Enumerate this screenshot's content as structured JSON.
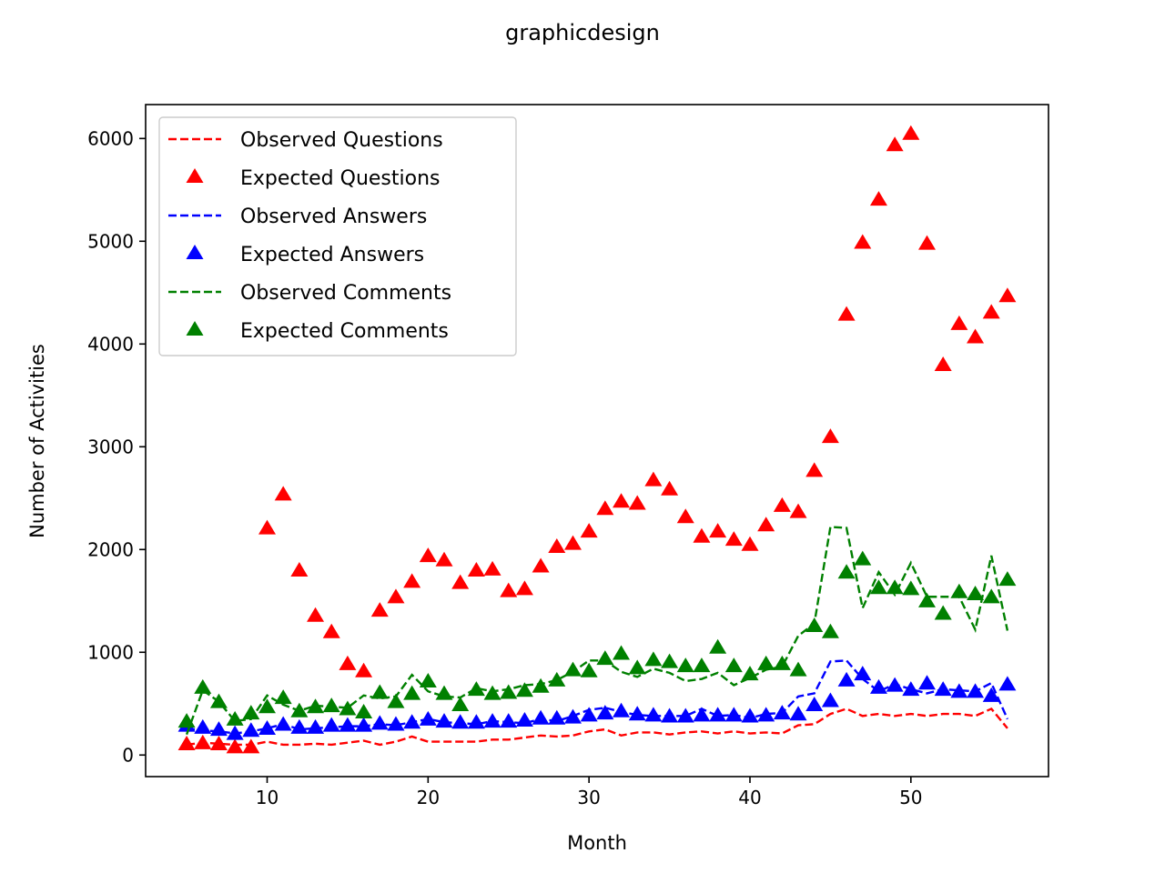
{
  "chart_data": {
    "type": "line",
    "title": "graphicdesign",
    "xlabel": "Month",
    "ylabel": "Number of Activities",
    "xlim": [
      2.45,
      58.55
    ],
    "ylim": [
      -210,
      6330
    ],
    "x_ticks": [
      10,
      20,
      30,
      40,
      50
    ],
    "y_ticks": [
      0,
      1000,
      2000,
      3000,
      4000,
      5000,
      6000
    ],
    "grid": false,
    "legend_position": "top-left",
    "x": [
      5,
      6,
      7,
      8,
      9,
      10,
      11,
      12,
      13,
      14,
      15,
      16,
      17,
      18,
      19,
      20,
      21,
      22,
      23,
      24,
      25,
      26,
      27,
      28,
      29,
      30,
      31,
      32,
      33,
      34,
      35,
      36,
      37,
      38,
      39,
      40,
      41,
      42,
      43,
      44,
      45,
      46,
      47,
      48,
      49,
      50,
      51,
      52,
      53,
      54,
      55,
      56
    ],
    "series": [
      {
        "name": "Observed Questions",
        "style": "dashed-line",
        "color": "#ff0000",
        "values": [
          100,
          120,
          110,
          100,
          100,
          130,
          100,
          100,
          110,
          100,
          120,
          140,
          100,
          130,
          180,
          130,
          130,
          130,
          130,
          150,
          150,
          170,
          190,
          180,
          190,
          230,
          250,
          190,
          220,
          220,
          200,
          220,
          230,
          210,
          230,
          210,
          220,
          210,
          290,
          300,
          400,
          450,
          380,
          400,
          380,
          400,
          380,
          400,
          400,
          380,
          450,
          260
        ]
      },
      {
        "name": "Expected Questions",
        "style": "triangle-marker",
        "color": "#ff0000",
        "values": [
          100,
          110,
          100,
          70,
          70,
          2200,
          2530,
          1790,
          1350,
          1190,
          880,
          810,
          1400,
          1530,
          1680,
          1930,
          1890,
          1670,
          1790,
          1800,
          1590,
          1610,
          1830,
          2020,
          2050,
          2170,
          2390,
          2460,
          2440,
          2670,
          2580,
          2310,
          2120,
          2170,
          2090,
          2040,
          2230,
          2420,
          2360,
          2760,
          3090,
          4280,
          4980,
          5400,
          5930,
          6040,
          4970,
          3790,
          4190,
          4060,
          4300,
          4460
        ]
      },
      {
        "name": "Observed Answers",
        "style": "dashed-line",
        "color": "#0000ff",
        "values": [
          260,
          240,
          230,
          210,
          230,
          260,
          300,
          250,
          260,
          270,
          280,
          280,
          300,
          290,
          320,
          350,
          320,
          310,
          300,
          330,
          320,
          310,
          350,
          330,
          380,
          440,
          460,
          420,
          390,
          380,
          380,
          380,
          450,
          380,
          390,
          360,
          400,
          410,
          570,
          600,
          910,
          920,
          740,
          620,
          690,
          640,
          600,
          640,
          630,
          620,
          700,
          350
        ]
      },
      {
        "name": "Expected Answers",
        "style": "triangle-marker",
        "color": "#0000ff",
        "values": [
          280,
          260,
          240,
          200,
          230,
          250,
          290,
          260,
          260,
          280,
          280,
          280,
          300,
          290,
          310,
          340,
          320,
          310,
          310,
          320,
          320,
          330,
          350,
          350,
          360,
          380,
          400,
          420,
          390,
          380,
          370,
          370,
          380,
          380,
          380,
          370,
          380,
          400,
          390,
          480,
          520,
          720,
          780,
          650,
          670,
          630,
          690,
          630,
          610,
          610,
          570,
          680
        ]
      },
      {
        "name": "Observed Comments",
        "style": "dashed-line",
        "color": "#008000",
        "values": [
          200,
          630,
          520,
          330,
          350,
          580,
          490,
          430,
          480,
          470,
          460,
          580,
          550,
          570,
          780,
          620,
          570,
          560,
          650,
          620,
          640,
          680,
          690,
          730,
          810,
          920,
          920,
          810,
          760,
          840,
          800,
          720,
          740,
          800,
          680,
          750,
          830,
          860,
          1160,
          1280,
          2220,
          2210,
          1430,
          1780,
          1560,
          1870,
          1540,
          1540,
          1540,
          1220,
          1940,
          1210
        ]
      },
      {
        "name": "Expected Comments",
        "style": "triangle-marker",
        "color": "#008000",
        "values": [
          320,
          650,
          510,
          340,
          400,
          460,
          550,
          420,
          460,
          470,
          440,
          410,
          600,
          510,
          590,
          710,
          590,
          480,
          630,
          590,
          600,
          620,
          660,
          720,
          820,
          810,
          930,
          980,
          840,
          920,
          900,
          860,
          860,
          1040,
          860,
          780,
          880,
          880,
          820,
          1250,
          1190,
          1770,
          1900,
          1620,
          1620,
          1610,
          1490,
          1370,
          1580,
          1560,
          1530,
          1700
        ]
      }
    ]
  }
}
